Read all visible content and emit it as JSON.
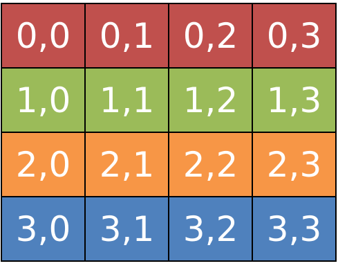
{
  "grid": {
    "rows": [
      {
        "color": "#C0504D",
        "cells": [
          "0,0",
          "0,1",
          "0,2",
          "0,3"
        ]
      },
      {
        "color": "#9BBB59",
        "cells": [
          "1,0",
          "1,1",
          "1,2",
          "1,3"
        ]
      },
      {
        "color": "#F79646",
        "cells": [
          "2,0",
          "2,1",
          "2,2",
          "2,3"
        ]
      },
      {
        "color": "#4F81BD",
        "cells": [
          "3,0",
          "3,1",
          "3,2",
          "3,3"
        ]
      }
    ]
  }
}
